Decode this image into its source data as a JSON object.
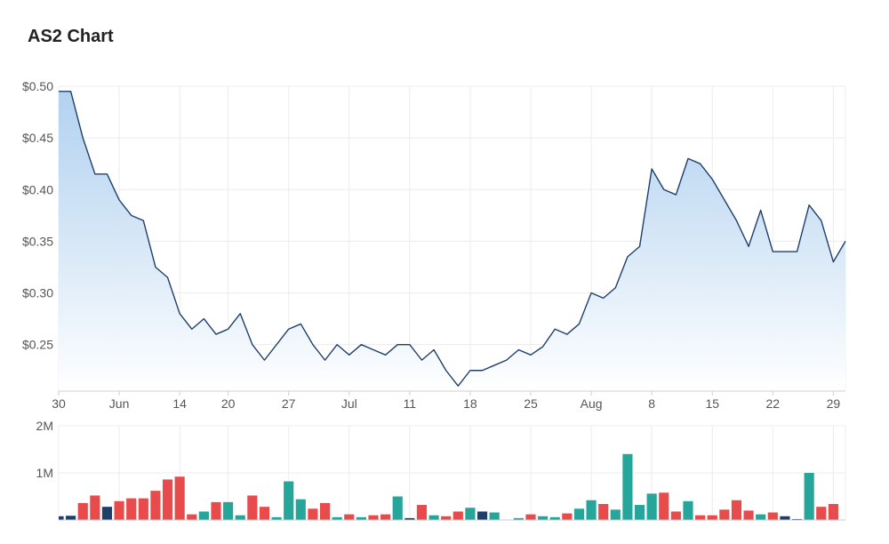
{
  "title": "AS2 Chart",
  "colors": {
    "line": "#1f3f6b",
    "area_top": "#aacdee",
    "area_bottom": "#ffffff",
    "grid": "#ececec",
    "vol_up": "#26a69a",
    "vol_down": "#e84b4b",
    "vol_neutral": "#1f3f6b"
  },
  "chart_data": [
    {
      "type": "line",
      "title": "AS2 Chart",
      "xlabel": "",
      "ylabel": "",
      "ylim": [
        0.205,
        0.5
      ],
      "y_ticks": [
        0.5,
        0.45,
        0.4,
        0.35,
        0.3,
        0.25
      ],
      "y_tick_labels": [
        "$0.50",
        "$0.45",
        "$0.40",
        "$0.35",
        "$0.30",
        "$0.25"
      ],
      "x_tick_labels": [
        "30",
        "Jun",
        "14",
        "20",
        "27",
        "Jul",
        "11",
        "18",
        "25",
        "Aug",
        "8",
        "15",
        "22",
        "29"
      ],
      "x_tick_index": [
        0,
        5,
        10,
        14,
        19,
        24,
        29,
        34,
        39,
        44,
        49,
        54,
        59,
        64
      ],
      "grid": true,
      "legend": "none",
      "series": [
        {
          "values": [
            0.495,
            0.495,
            0.45,
            0.415,
            0.415,
            0.39,
            0.375,
            0.37,
            0.325,
            0.315,
            0.28,
            0.265,
            0.275,
            0.26,
            0.265,
            0.28,
            0.25,
            0.235,
            0.25,
            0.265,
            0.27,
            0.25,
            0.235,
            0.25,
            0.24,
            0.25,
            0.245,
            0.24,
            0.25,
            0.25,
            0.235,
            0.245,
            0.225,
            0.21,
            0.225,
            0.225,
            0.23,
            0.235,
            0.245,
            0.24,
            0.248,
            0.265,
            0.26,
            0.27,
            0.3,
            0.295,
            0.305,
            0.335,
            0.345,
            0.42,
            0.4,
            0.395,
            0.43,
            0.425,
            0.41,
            0.39,
            0.37,
            0.345,
            0.38,
            0.34,
            0.34,
            0.34,
            0.385,
            0.37,
            0.33,
            0.35
          ]
        }
      ]
    },
    {
      "type": "bar",
      "title": "",
      "ylim": [
        0,
        2000000
      ],
      "y_ticks": [
        2000000,
        1000000
      ],
      "y_tick_labels": [
        "2M",
        "1M"
      ],
      "grid": true,
      "series": [
        {
          "values": [
            80000,
            90000,
            360000,
            520000,
            280000,
            400000,
            460000,
            460000,
            620000,
            860000,
            920000,
            120000,
            180000,
            380000,
            380000,
            100000,
            520000,
            280000,
            60000,
            820000,
            440000,
            240000,
            360000,
            60000,
            120000,
            60000,
            100000,
            120000,
            500000,
            40000,
            320000,
            100000,
            80000,
            180000,
            260000,
            180000,
            160000,
            10000,
            40000,
            120000,
            80000,
            60000,
            140000,
            240000,
            420000,
            340000,
            220000,
            1400000,
            320000,
            560000,
            580000,
            180000,
            400000,
            100000,
            100000,
            220000,
            420000,
            200000,
            120000,
            160000,
            80000,
            20000,
            1000000,
            280000,
            340000,
            10000
          ],
          "directions": [
            "n",
            "n",
            "d",
            "d",
            "n",
            "d",
            "d",
            "d",
            "d",
            "d",
            "d",
            "d",
            "u",
            "d",
            "u",
            "u",
            "d",
            "d",
            "u",
            "u",
            "u",
            "d",
            "d",
            "u",
            "d",
            "u",
            "d",
            "d",
            "u",
            "n",
            "d",
            "u",
            "d",
            "d",
            "u",
            "n",
            "u",
            "u",
            "u",
            "d",
            "u",
            "u",
            "d",
            "u",
            "u",
            "d",
            "u",
            "u",
            "u",
            "u",
            "d",
            "d",
            "u",
            "d",
            "d",
            "d",
            "d",
            "d",
            "u",
            "d",
            "n",
            "n",
            "u",
            "d",
            "d",
            "u"
          ]
        }
      ]
    }
  ]
}
